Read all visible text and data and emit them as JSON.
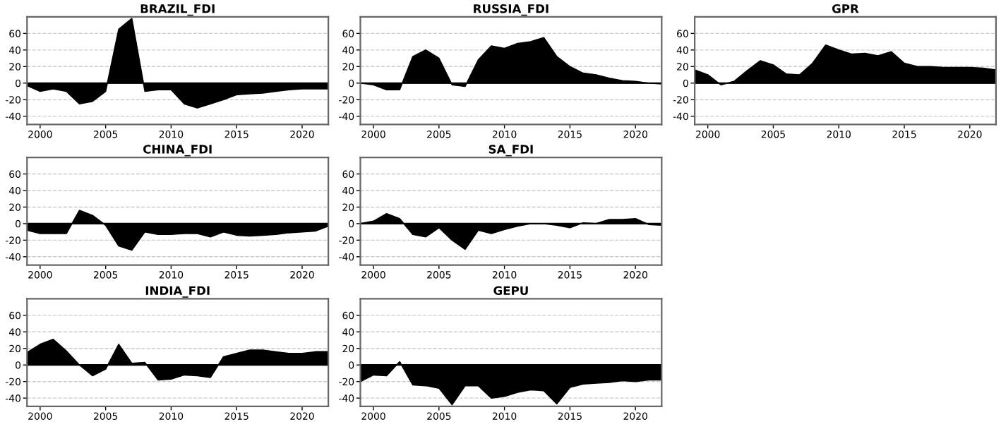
{
  "chart_data": [
    {
      "type": "area",
      "title": "BRAZIL_FDI",
      "x": [
        1999,
        2000,
        2001,
        2002,
        2003,
        2004,
        2005,
        2006,
        2007,
        2008,
        2009,
        2010,
        2011,
        2012,
        2013,
        2014,
        2015,
        2016,
        2017,
        2018,
        2019,
        2020,
        2021,
        2022
      ],
      "values": [
        -3,
        -10,
        -7,
        -10,
        -25,
        -22,
        -10,
        65,
        78,
        -10,
        -8,
        -8,
        -25,
        -30,
        -25,
        -20,
        -14,
        -13,
        -12,
        -10,
        -8,
        -7,
        -7,
        -7
      ],
      "color": "#000000",
      "xlim": [
        1999,
        2022
      ],
      "ylim": [
        -50,
        80
      ],
      "xticks": [
        2000,
        2005,
        2010,
        2015,
        2020
      ],
      "yticks": [
        -40,
        -20,
        0,
        20,
        40,
        60
      ],
      "grid": "y"
    },
    {
      "type": "area",
      "title": "RUSSIA_FDI",
      "x": [
        1999,
        2000,
        2001,
        2002,
        2003,
        2004,
        2005,
        2006,
        2007,
        2008,
        2009,
        2010,
        2011,
        2012,
        2013,
        2014,
        2015,
        2016,
        2017,
        2018,
        2019,
        2020,
        2021,
        2022
      ],
      "values": [
        0,
        -2,
        -8,
        -8,
        32,
        40,
        30,
        -2,
        -4,
        28,
        45,
        42,
        48,
        50,
        55,
        32,
        20,
        12,
        10,
        6,
        3,
        2,
        0,
        -1
      ],
      "color": "#000000",
      "xlim": [
        1999,
        2022
      ],
      "ylim": [
        -50,
        80
      ],
      "xticks": [
        2000,
        2005,
        2010,
        2015,
        2020
      ],
      "yticks": [
        -40,
        -20,
        0,
        20,
        40,
        60
      ],
      "grid": "y"
    },
    {
      "type": "area",
      "title": "GPR",
      "x": [
        1999,
        2000,
        2001,
        2002,
        2003,
        2004,
        2005,
        2006,
        2007,
        2008,
        2009,
        2010,
        2011,
        2012,
        2013,
        2014,
        2015,
        2016,
        2017,
        2018,
        2019,
        2020,
        2021,
        2022
      ],
      "values": [
        16,
        10,
        -2,
        2,
        15,
        27,
        22,
        11,
        10,
        24,
        46,
        40,
        35,
        36,
        33,
        38,
        24,
        20,
        20,
        19,
        19,
        19,
        18,
        16
      ],
      "color": "#000000",
      "xlim": [
        1999,
        2022
      ],
      "ylim": [
        -50,
        80
      ],
      "xticks": [
        2000,
        2005,
        2010,
        2015,
        2020
      ],
      "yticks": [
        -40,
        -20,
        0,
        20,
        40,
        60
      ],
      "grid": "y"
    },
    {
      "type": "area",
      "title": "CHINA_FDI",
      "x": [
        1999,
        2000,
        2001,
        2002,
        2003,
        2004,
        2005,
        2006,
        2007,
        2008,
        2009,
        2010,
        2011,
        2012,
        2013,
        2014,
        2015,
        2016,
        2017,
        2018,
        2019,
        2020,
        2021,
        2022
      ],
      "values": [
        -8,
        -12,
        -12,
        -12,
        16,
        10,
        -2,
        -27,
        -32,
        -10,
        -13,
        -13,
        -12,
        -12,
        -16,
        -10,
        -14,
        -15,
        -14,
        -13,
        -11,
        -10,
        -9,
        -3
      ],
      "color": "#000000",
      "xlim": [
        1999,
        2022
      ],
      "ylim": [
        -50,
        80
      ],
      "xticks": [
        2000,
        2005,
        2010,
        2015,
        2020
      ],
      "yticks": [
        -40,
        -20,
        0,
        20,
        40,
        60
      ],
      "grid": "y"
    },
    {
      "type": "area",
      "title": "SA_FDI",
      "x": [
        1999,
        2000,
        2001,
        2002,
        2003,
        2004,
        2005,
        2006,
        2007,
        2008,
        2009,
        2010,
        2011,
        2012,
        2013,
        2014,
        2015,
        2016,
        2017,
        2018,
        2019,
        2020,
        2021,
        2022
      ],
      "values": [
        0,
        3,
        12,
        6,
        -13,
        -16,
        -5,
        -20,
        -31,
        -8,
        -12,
        -7,
        -3,
        0,
        0,
        -2,
        -5,
        1,
        0,
        5,
        5,
        6,
        -1,
        -2
      ],
      "color": "#000000",
      "xlim": [
        1999,
        2022
      ],
      "ylim": [
        -50,
        80
      ],
      "xticks": [
        2000,
        2005,
        2010,
        2015,
        2020
      ],
      "yticks": [
        -40,
        -20,
        0,
        20,
        40,
        60
      ],
      "grid": "y"
    },
    {
      "type": "area",
      "title": "INDIA_FDI",
      "x": [
        1999,
        2000,
        2001,
        2002,
        2003,
        2004,
        2005,
        2006,
        2007,
        2008,
        2009,
        2010,
        2011,
        2012,
        2013,
        2014,
        2015,
        2016,
        2017,
        2018,
        2019,
        2020,
        2021,
        2022
      ],
      "values": [
        15,
        25,
        31,
        17,
        0,
        -13,
        -5,
        25,
        2,
        3,
        -18,
        -17,
        -12,
        -13,
        -15,
        10,
        14,
        18,
        18,
        16,
        14,
        14,
        16,
        16
      ],
      "color": "#000000",
      "xlim": [
        1999,
        2022
      ],
      "ylim": [
        -50,
        80
      ],
      "xticks": [
        2000,
        2005,
        2010,
        2015,
        2020
      ],
      "yticks": [
        -40,
        -20,
        0,
        20,
        40,
        60
      ],
      "grid": "y"
    },
    {
      "type": "area",
      "title": "GEPU",
      "x": [
        1999,
        2000,
        2001,
        2002,
        2003,
        2004,
        2005,
        2006,
        2007,
        2008,
        2009,
        2010,
        2011,
        2012,
        2013,
        2014,
        2015,
        2016,
        2017,
        2018,
        2019,
        2020,
        2021,
        2022
      ],
      "values": [
        -20,
        -12,
        -13,
        4,
        -24,
        -25,
        -28,
        -48,
        -25,
        -25,
        -40,
        -38,
        -33,
        -30,
        -31,
        -47,
        -27,
        -23,
        -22,
        -21,
        -19,
        -20,
        -18,
        -18
      ],
      "color": "#000000",
      "xlim": [
        1999,
        2022
      ],
      "ylim": [
        -50,
        80
      ],
      "xticks": [
        2000,
        2005,
        2010,
        2015,
        2020
      ],
      "yticks": [
        -40,
        -20,
        0,
        20,
        40,
        60
      ],
      "grid": "y"
    }
  ]
}
